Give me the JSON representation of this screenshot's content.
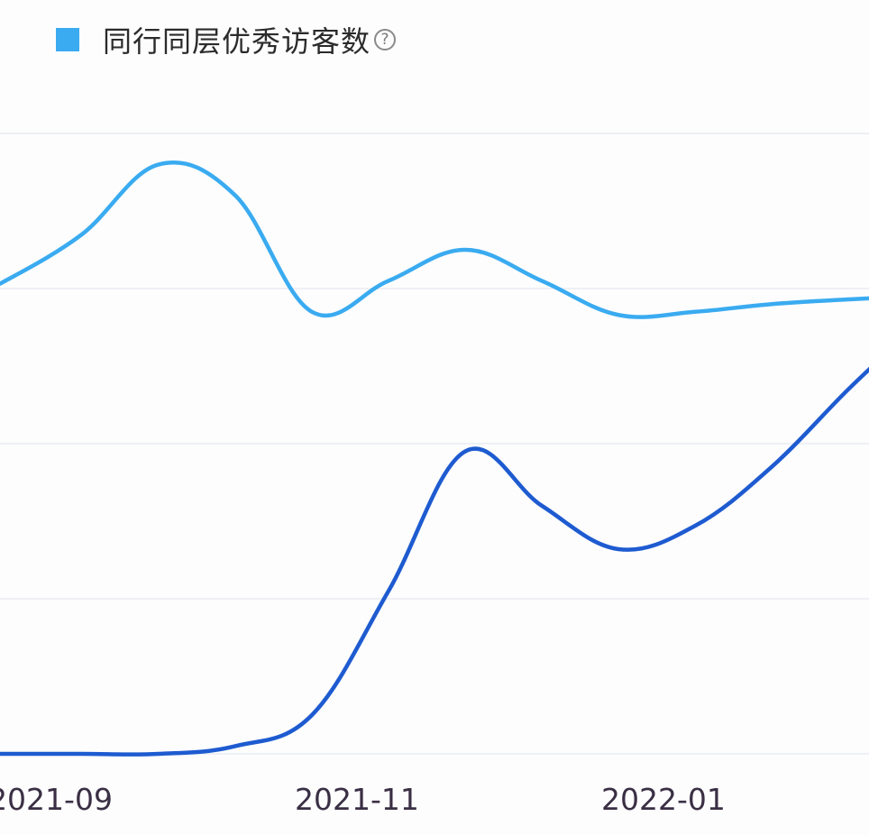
{
  "legend": {
    "label": "同行同层优秀访客数",
    "help_icon_glyph": "?",
    "help_icon": "question-circle-icon"
  },
  "colors": {
    "series_light": "#3aabf0",
    "series_dark": "#1e5bd0",
    "grid": "#eef0f4",
    "swatch": "#3aabf0"
  },
  "chart_data": {
    "type": "line",
    "x": [
      -0.06,
      0.0,
      0.5,
      1.0,
      1.5,
      2.0,
      2.5,
      3.0,
      3.5,
      4.0,
      4.5,
      5.0,
      5.5,
      5.9
    ],
    "x_ticks": [
      {
        "x": 0.0,
        "label": "2021-09"
      },
      {
        "x": 2.0,
        "label": "2021-11"
      },
      {
        "x": 4.0,
        "label": "2022-01"
      }
    ],
    "ylim": [
      0,
      4
    ],
    "grid": true,
    "legend_position": "top-left",
    "series": [
      {
        "name": "同行同层优秀访客数",
        "color": "#3aabf0",
        "values": [
          3.04,
          3.05,
          3.35,
          3.8,
          3.6,
          2.85,
          3.05,
          3.25,
          3.05,
          2.83,
          2.85,
          2.9,
          2.93,
          2.95
        ]
      },
      {
        "name": "",
        "color": "#1e5bd0",
        "values": [
          0.0,
          0.0,
          0.0,
          0.0,
          0.05,
          0.25,
          1.05,
          1.95,
          1.6,
          1.32,
          1.47,
          1.85,
          2.35,
          2.72
        ]
      }
    ]
  }
}
